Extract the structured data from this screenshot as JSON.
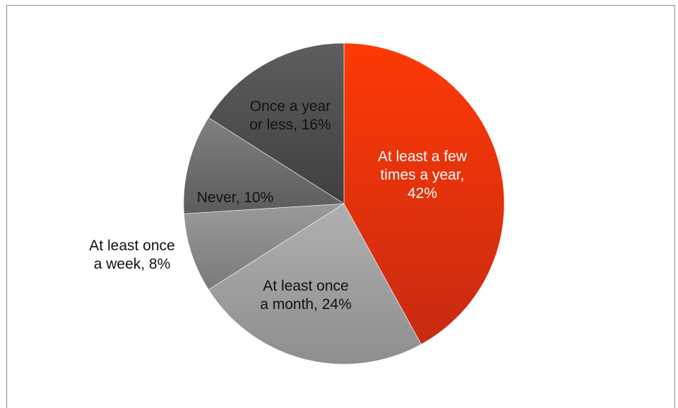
{
  "chart_data": {
    "type": "pie",
    "title": "",
    "categories": [
      "At least a few times a year",
      "At least once a month",
      "At least once a week",
      "Never",
      "Once a year or less"
    ],
    "values": [
      42,
      24,
      8,
      10,
      16
    ],
    "value_unit": "%",
    "data_labels": [
      [
        "At least a few",
        "times a year,",
        "42%"
      ],
      [
        "At least once",
        "a month, 24%"
      ],
      [
        "At least once",
        "a week, 8%"
      ],
      [
        "Never, 10%"
      ],
      [
        "Once a year",
        "or less, 16%"
      ]
    ],
    "colors": [
      "#e8300a",
      "#a3a3a3",
      "#8a8a8a",
      "#6b6b6b",
      "#4f4f4f"
    ],
    "legend": "none",
    "start_angle": "12 o'clock",
    "direction": "clockwise"
  }
}
